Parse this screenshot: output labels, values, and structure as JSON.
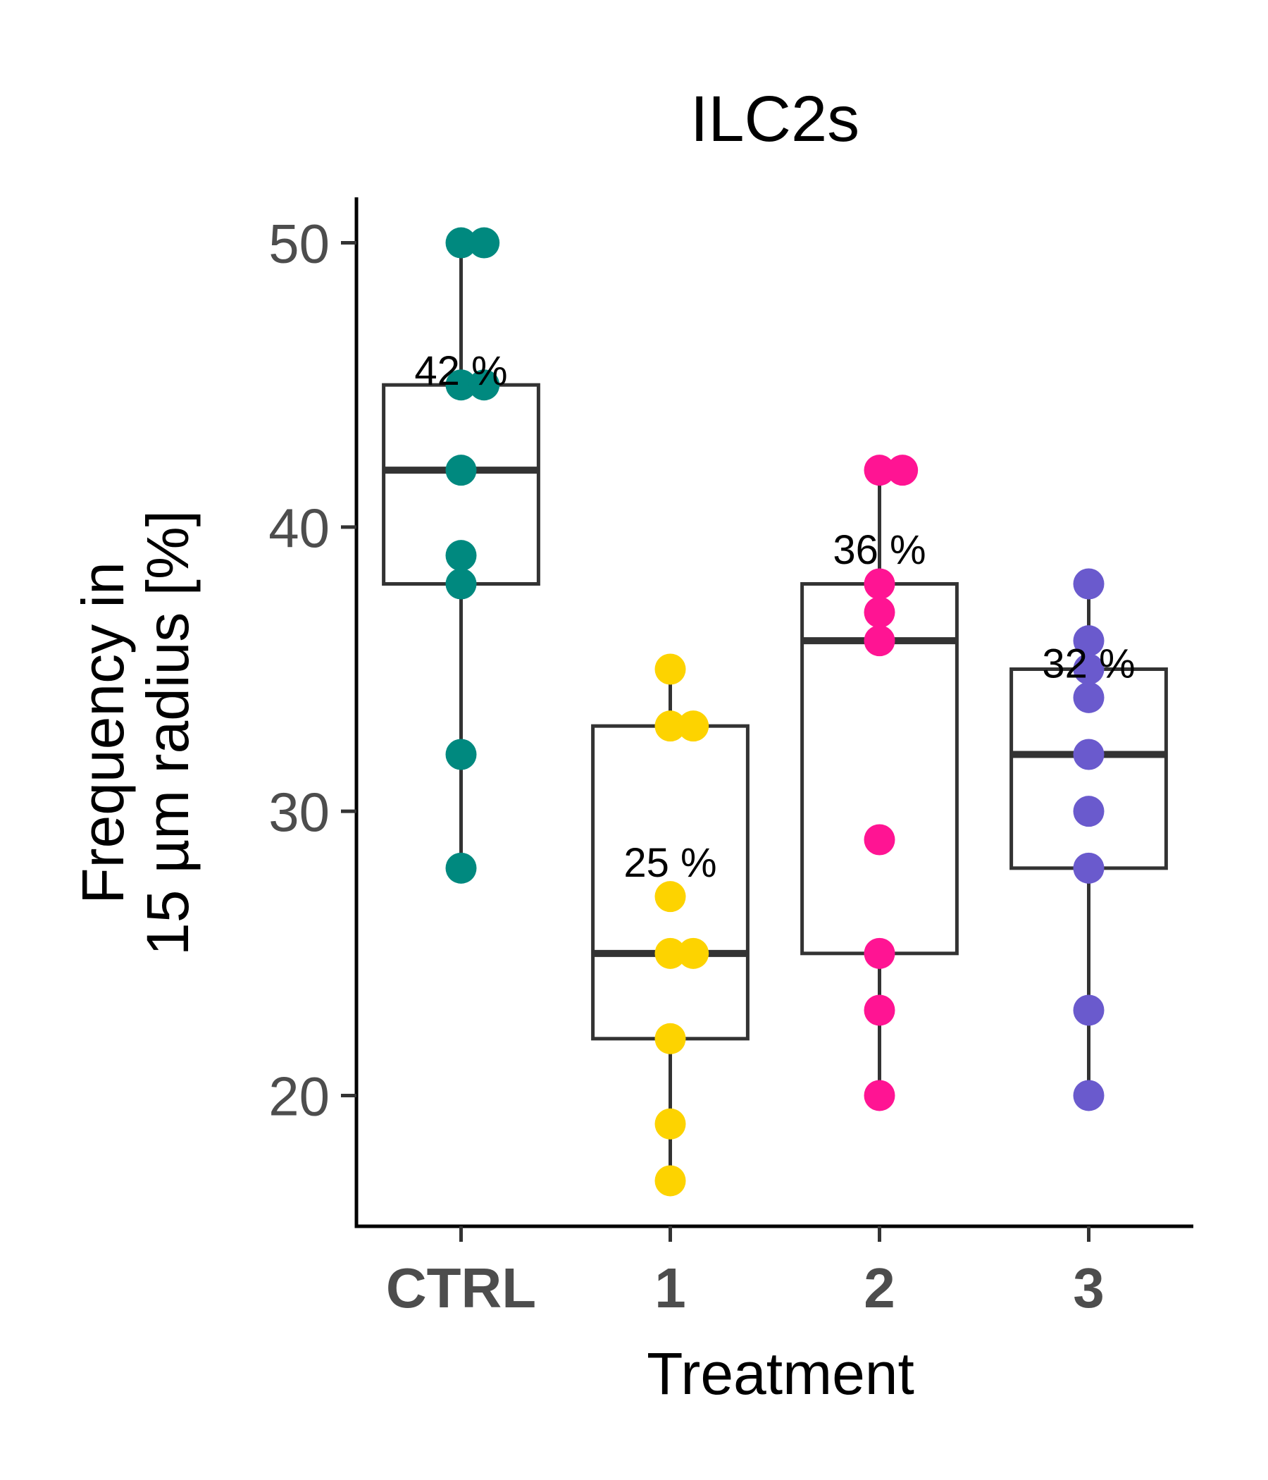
{
  "chart_data": {
    "type": "box",
    "title": "ILC2s",
    "xlabel": "Treatment",
    "ylabel_lines": [
      "Frequency in",
      "15 µm radius [%]"
    ],
    "categories": [
      "CTRL",
      "1",
      "2",
      "3"
    ],
    "ylim": [
      15.4,
      51.6
    ],
    "yticks": [
      20,
      30,
      40,
      50
    ],
    "grid": false,
    "legend": "none",
    "colors": [
      "#00897f",
      "#fdd300",
      "#ff1493",
      "#6a5acd"
    ],
    "box_color": "#333333",
    "boxes": [
      {
        "category": "CTRL",
        "q1": 38,
        "median": 42,
        "q3": 45,
        "whisker_low": 28,
        "whisker_high": 50,
        "label": "42 %",
        "label_y": 45.5
      },
      {
        "category": "1",
        "q1": 22,
        "median": 25,
        "q3": 33,
        "whisker_low": 17,
        "whisker_high": 35,
        "label": "25 %",
        "label_y": 28.2
      },
      {
        "category": "2",
        "q1": 25,
        "median": 36,
        "q3": 38,
        "whisker_low": 20,
        "whisker_high": 42,
        "label": "36 %",
        "label_y": 39.2
      },
      {
        "category": "3",
        "q1": 28,
        "median": 32,
        "q3": 35,
        "whisker_low": 20,
        "whisker_high": 38,
        "label": "32 %",
        "label_y": 35.2
      }
    ],
    "points": [
      {
        "category": "CTRL",
        "values": [
          50,
          50,
          45,
          45,
          42,
          39,
          38,
          32,
          28
        ],
        "offsets": [
          0,
          1,
          0,
          1,
          0,
          0,
          0,
          0,
          0
        ]
      },
      {
        "category": "1",
        "values": [
          35,
          33,
          33,
          27,
          25,
          25,
          22,
          19,
          17
        ],
        "offsets": [
          0,
          0,
          1,
          0,
          0,
          1,
          0,
          0,
          0
        ]
      },
      {
        "category": "2",
        "values": [
          42,
          42,
          38,
          37,
          36,
          29,
          25,
          23,
          20
        ],
        "offsets": [
          0,
          1,
          0,
          0,
          0,
          0,
          0,
          0,
          0
        ]
      },
      {
        "category": "3",
        "values": [
          38,
          36,
          35,
          34,
          32,
          30,
          28,
          23,
          20
        ],
        "offsets": [
          0,
          0,
          0,
          0,
          0,
          0,
          0,
          0,
          0
        ]
      }
    ]
  }
}
